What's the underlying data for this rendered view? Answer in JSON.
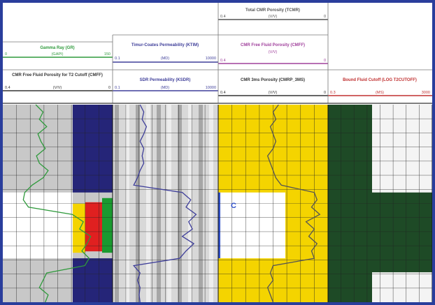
{
  "colors": {
    "frame": "#2a3e9c",
    "gamma": "#2f9a3c",
    "timur": "#3f3f9a",
    "cmff": "#a0409c",
    "total": "#555555",
    "cutoff": "#c03030",
    "gray_fill": "#8c8c8c",
    "navy_fill": "#252578",
    "yellow_fill": "#f4d400",
    "red_fill": "#e02020",
    "green_fill": "#1a9a30",
    "dark_green": "#1e4a26",
    "blue_bar": "#3050c8"
  },
  "header": {
    "track1": {
      "gamma": {
        "title": "Gamma Ray (GR)",
        "unit": "(GAPI)",
        "min": "0",
        "max": "150"
      },
      "cmff_cutoff": {
        "title": "CMR Free Fluid Porosity for T2 Cutoff (CMFF)",
        "unit": "(V/V)",
        "min": "0.4",
        "max": "0"
      }
    },
    "track2": {
      "timur": {
        "title": "Timur-Coates Permeability (KTIM)",
        "unit": "(MD)",
        "min": "0.1",
        "max": "10000"
      },
      "sdr": {
        "title": "SDR Permeability (KSDR)",
        "unit": "(MD)",
        "min": "0.1",
        "max": "10000"
      }
    },
    "track3": {
      "total": {
        "title": "Total CMR Porosity (TCMR)",
        "unit": "(V/V)",
        "min": "0.4",
        "max": "0"
      },
      "cmff": {
        "title": "CMR Free Fluid Porosity (CMFF)",
        "unit": "(V/V)",
        "min": "0.4",
        "max": "0"
      },
      "bin": {
        "title": "CMR 3ms Porosity (CMRP_3MS)",
        "unit": "(V/V)",
        "min": "0.4",
        "max": "0"
      }
    },
    "track4": {
      "cutoff": {
        "title": "Bound Fluid Cutoff (LOG T2CUTOFF)",
        "unit": "(MS)",
        "min": "0.3",
        "max": "3000"
      }
    }
  },
  "zone_marker": "C",
  "chart_data": {
    "type": "line",
    "title": "",
    "depth_samples": 28,
    "series": [
      {
        "name": "Gamma Ray (GR)",
        "track": 1,
        "values": [
          45,
          55,
          50,
          60,
          48,
          52,
          58,
          46,
          50,
          62,
          55,
          40,
          30,
          28,
          35,
          95,
          110,
          105,
          120,
          115,
          108,
          118,
          112,
          60,
          55,
          50,
          62,
          58
        ]
      },
      {
        "name": "Total CMR Porosity (TCMR)",
        "track": 3,
        "values": [
          0.18,
          0.2,
          0.19,
          0.21,
          0.2,
          0.19,
          0.2,
          0.22,
          0.21,
          0.2,
          0.19,
          0.17,
          0.05,
          0.04,
          0.06,
          0.03,
          0.08,
          0.05,
          0.07,
          0.04,
          0.06,
          0.05,
          0.2,
          0.21,
          0.2,
          0.22,
          0.21,
          0.2
        ]
      },
      {
        "name": "Timur-Coates Permeability (KTIM)",
        "track": 2,
        "values": [
          2,
          3,
          2.5,
          4,
          3,
          2,
          3,
          2.5,
          3,
          2,
          1.5,
          1,
          200,
          500,
          300,
          900,
          400,
          600,
          200,
          700,
          300,
          150,
          1,
          2,
          1.5,
          2,
          1.8,
          2
        ]
      }
    ],
    "zone": {
      "label": "C",
      "depth_from": 12,
      "depth_to": 21
    }
  }
}
